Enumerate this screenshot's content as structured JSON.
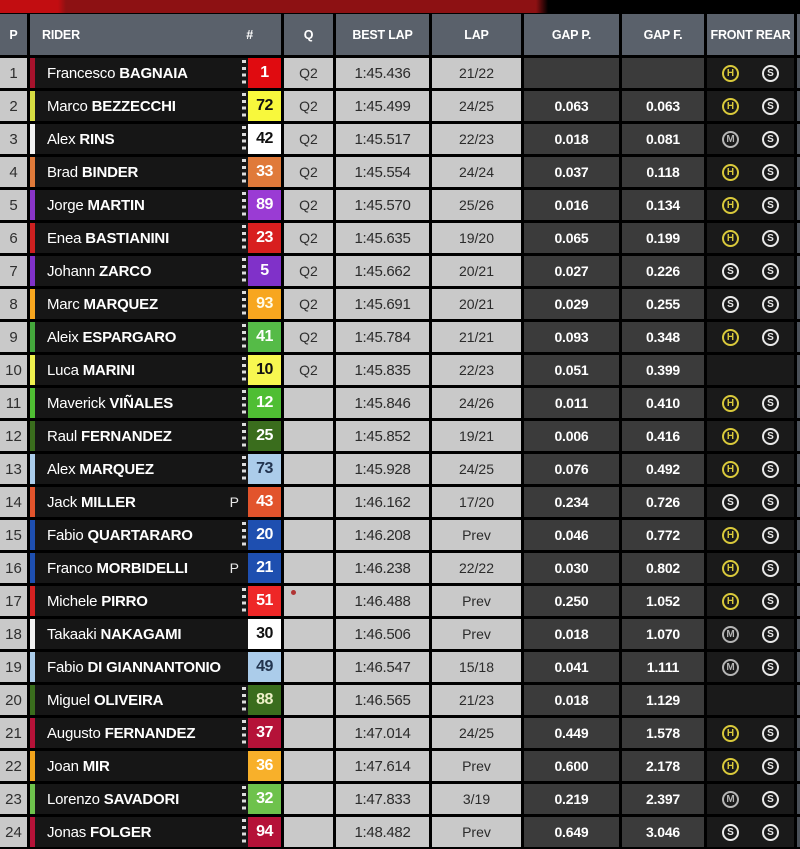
{
  "header": {
    "p": "P",
    "rider": "RIDER",
    "num": "#",
    "q": "Q",
    "best_lap": "BEST LAP",
    "lap": "LAP",
    "gap_p": "GAP P.",
    "gap_f": "GAP F.",
    "tires": "FRONT REAR"
  },
  "accent_colors": {
    "topbar_bright_red": "#c20d11",
    "topbar_dark_red": "#8d1113",
    "header_bg": "#5a616b",
    "light_cell_bg": "#c9c9c9",
    "gap_cell_bg": "#3b3b3b",
    "note_dot": "#b03434"
  },
  "tire_colors": {
    "H": "#d9c93b",
    "M": "#b5b5b5",
    "S": "#e9e9e9"
  },
  "rows": [
    {
      "pos": "1",
      "first": "Francesco",
      "last": "BAGNAIA",
      "pit_flag": "",
      "on_track": true,
      "note": false,
      "num": "1",
      "num_bg": "#e00b10",
      "num_fg": "#ffffff",
      "stripe": "#a6122c",
      "q": "Q2",
      "best_lap": "1:45.436",
      "lap": "21/22",
      "gap_p": "",
      "gap_f": "",
      "front": "H",
      "rear": "S"
    },
    {
      "pos": "2",
      "first": "Marco",
      "last": "BEZZECCHI",
      "pit_flag": "",
      "on_track": true,
      "note": false,
      "num": "72",
      "num_bg": "#f8f83c",
      "num_fg": "#111111",
      "stripe": "#d6dc42",
      "q": "Q2",
      "best_lap": "1:45.499",
      "lap": "24/25",
      "gap_p": "0.063",
      "gap_f": "0.063",
      "front": "H",
      "rear": "S"
    },
    {
      "pos": "3",
      "first": "Alex",
      "last": "RINS",
      "pit_flag": "",
      "on_track": true,
      "note": false,
      "num": "42",
      "num_bg": "#ffffff",
      "num_fg": "#111111",
      "stripe": "#f2f2f2",
      "q": "Q2",
      "best_lap": "1:45.517",
      "lap": "22/23",
      "gap_p": "0.018",
      "gap_f": "0.081",
      "front": "M",
      "rear": "S"
    },
    {
      "pos": "4",
      "first": "Brad",
      "last": "BINDER",
      "pit_flag": "",
      "on_track": true,
      "note": false,
      "num": "33",
      "num_bg": "#e07a3a",
      "num_fg": "#ffffff",
      "stripe": "#e07a3a",
      "q": "Q2",
      "best_lap": "1:45.554",
      "lap": "24/24",
      "gap_p": "0.037",
      "gap_f": "0.118",
      "front": "H",
      "rear": "S"
    },
    {
      "pos": "5",
      "first": "Jorge",
      "last": "MARTIN",
      "pit_flag": "",
      "on_track": true,
      "note": false,
      "num": "89",
      "num_bg": "#9a3bd4",
      "num_fg": "#ffffff",
      "stripe": "#8a35c8",
      "q": "Q2",
      "best_lap": "1:45.570",
      "lap": "25/26",
      "gap_p": "0.016",
      "gap_f": "0.134",
      "front": "H",
      "rear": "S"
    },
    {
      "pos": "6",
      "first": "Enea",
      "last": "BASTIANINI",
      "pit_flag": "",
      "on_track": true,
      "note": false,
      "num": "23",
      "num_bg": "#d81f1f",
      "num_fg": "#ffffff",
      "stripe": "#cc2020",
      "q": "Q2",
      "best_lap": "1:45.635",
      "lap": "19/20",
      "gap_p": "0.065",
      "gap_f": "0.199",
      "front": "H",
      "rear": "S"
    },
    {
      "pos": "7",
      "first": "Johann",
      "last": "ZARCO",
      "pit_flag": "",
      "on_track": true,
      "note": false,
      "num": "5",
      "num_bg": "#8031c9",
      "num_fg": "#ffffff",
      "stripe": "#8031c9",
      "q": "Q2",
      "best_lap": "1:45.662",
      "lap": "20/21",
      "gap_p": "0.027",
      "gap_f": "0.226",
      "front": "S",
      "rear": "S"
    },
    {
      "pos": "8",
      "first": "Marc",
      "last": "MARQUEZ",
      "pit_flag": "",
      "on_track": true,
      "note": false,
      "num": "93",
      "num_bg": "#f7a61f",
      "num_fg": "#fffbe8",
      "stripe": "#f7a61f",
      "q": "Q2",
      "best_lap": "1:45.691",
      "lap": "20/21",
      "gap_p": "0.029",
      "gap_f": "0.255",
      "front": "S",
      "rear": "S"
    },
    {
      "pos": "9",
      "first": "Aleix",
      "last": "ESPARGARO",
      "pit_flag": "",
      "on_track": true,
      "note": false,
      "num": "41",
      "num_bg": "#55bb47",
      "num_fg": "#ffffff",
      "stripe": "#44a83c",
      "q": "Q2",
      "best_lap": "1:45.784",
      "lap": "21/21",
      "gap_p": "0.093",
      "gap_f": "0.348",
      "front": "H",
      "rear": "S"
    },
    {
      "pos": "10",
      "first": "Luca",
      "last": "MARINI",
      "pit_flag": "",
      "on_track": true,
      "note": false,
      "num": "10",
      "num_bg": "#f7f750",
      "num_fg": "#111111",
      "stripe": "#eef04e",
      "q": "Q2",
      "best_lap": "1:45.835",
      "lap": "22/23",
      "gap_p": "0.051",
      "gap_f": "0.399",
      "front": "",
      "rear": ""
    },
    {
      "pos": "11",
      "first": "Maverick",
      "last": "VIÑALES",
      "pit_flag": "",
      "on_track": true,
      "note": false,
      "num": "12",
      "num_bg": "#4fbe33",
      "num_fg": "#ffffff",
      "stripe": "#4fbe33",
      "q": "",
      "best_lap": "1:45.846",
      "lap": "24/26",
      "gap_p": "0.011",
      "gap_f": "0.410",
      "front": "H",
      "rear": "S"
    },
    {
      "pos": "12",
      "first": "Raul",
      "last": "FERNANDEZ",
      "pit_flag": "",
      "on_track": true,
      "note": false,
      "num": "25",
      "num_bg": "#3a6d1d",
      "num_fg": "#ffffff",
      "stripe": "#3a6d1d",
      "q": "",
      "best_lap": "1:45.852",
      "lap": "19/21",
      "gap_p": "0.006",
      "gap_f": "0.416",
      "front": "H",
      "rear": "S"
    },
    {
      "pos": "13",
      "first": "Alex",
      "last": "MARQUEZ",
      "pit_flag": "",
      "on_track": true,
      "note": false,
      "num": "73",
      "num_bg": "#abccea",
      "num_fg": "#22344f",
      "stripe": "#abccea",
      "q": "",
      "best_lap": "1:45.928",
      "lap": "24/25",
      "gap_p": "0.076",
      "gap_f": "0.492",
      "front": "H",
      "rear": "S"
    },
    {
      "pos": "14",
      "first": "Jack",
      "last": "MILLER",
      "pit_flag": "P",
      "on_track": false,
      "note": false,
      "num": "43",
      "num_bg": "#e2542c",
      "num_fg": "#ffffff",
      "stripe": "#e2542c",
      "q": "",
      "best_lap": "1:46.162",
      "lap": "17/20",
      "gap_p": "0.234",
      "gap_f": "0.726",
      "front": "S",
      "rear": "S"
    },
    {
      "pos": "15",
      "first": "Fabio",
      "last": "QUARTARARO",
      "pit_flag": "",
      "on_track": true,
      "note": false,
      "num": "20",
      "num_bg": "#1e4fb0",
      "num_fg": "#ffffff",
      "stripe": "#1e4fb0",
      "q": "",
      "best_lap": "1:46.208",
      "lap": "Prev",
      "gap_p": "0.046",
      "gap_f": "0.772",
      "front": "H",
      "rear": "S"
    },
    {
      "pos": "16",
      "first": "Franco",
      "last": "MORBIDELLI",
      "pit_flag": "P",
      "on_track": false,
      "note": false,
      "num": "21",
      "num_bg": "#1e4fb0",
      "num_fg": "#ffffff",
      "stripe": "#1e4fb0",
      "q": "",
      "best_lap": "1:46.238",
      "lap": "22/22",
      "gap_p": "0.030",
      "gap_f": "0.802",
      "front": "H",
      "rear": "S"
    },
    {
      "pos": "17",
      "first": "Michele",
      "last": "PIRRO",
      "pit_flag": "",
      "on_track": true,
      "note": true,
      "num": "51",
      "num_bg": "#ee2727",
      "num_fg": "#ffffff",
      "stripe": "#d42121",
      "q": "",
      "best_lap": "1:46.488",
      "lap": "Prev",
      "gap_p": "0.250",
      "gap_f": "1.052",
      "front": "H",
      "rear": "S"
    },
    {
      "pos": "18",
      "first": "Takaaki",
      "last": "NAKAGAMI",
      "pit_flag": "",
      "on_track": false,
      "note": false,
      "num": "30",
      "num_bg": "#ffffff",
      "num_fg": "#111111",
      "stripe": "#f2f2f2",
      "q": "",
      "best_lap": "1:46.506",
      "lap": "Prev",
      "gap_p": "0.018",
      "gap_f": "1.070",
      "front": "M",
      "rear": "S"
    },
    {
      "pos": "19",
      "first": "Fabio",
      "last": "DI GIANNANTONIO",
      "pit_flag": "",
      "on_track": false,
      "note": false,
      "num": "49",
      "num_bg": "#abccea",
      "num_fg": "#22344f",
      "stripe": "#abccea",
      "q": "",
      "best_lap": "1:46.547",
      "lap": "15/18",
      "gap_p": "0.041",
      "gap_f": "1.111",
      "front": "M",
      "rear": "S"
    },
    {
      "pos": "20",
      "first": "Miguel",
      "last": "OLIVEIRA",
      "pit_flag": "",
      "on_track": true,
      "note": false,
      "num": "88",
      "num_bg": "#3a6d1d",
      "num_fg": "#eef2c8",
      "stripe": "#3a6d1d",
      "q": "",
      "best_lap": "1:46.565",
      "lap": "21/23",
      "gap_p": "0.018",
      "gap_f": "1.129",
      "front": "",
      "rear": ""
    },
    {
      "pos": "21",
      "first": "Augusto",
      "last": "FERNANDEZ",
      "pit_flag": "",
      "on_track": true,
      "note": false,
      "num": "37",
      "num_bg": "#b51238",
      "num_fg": "#ffffff",
      "stripe": "#b51238",
      "q": "",
      "best_lap": "1:47.014",
      "lap": "24/25",
      "gap_p": "0.449",
      "gap_f": "1.578",
      "front": "H",
      "rear": "S"
    },
    {
      "pos": "22",
      "first": "Joan",
      "last": "MIR",
      "pit_flag": "",
      "on_track": false,
      "note": false,
      "num": "36",
      "num_bg": "#f8b02a",
      "num_fg": "#ffffff",
      "stripe": "#f0a31c",
      "q": "",
      "best_lap": "1:47.614",
      "lap": "Prev",
      "gap_p": "0.600",
      "gap_f": "2.178",
      "front": "H",
      "rear": "S"
    },
    {
      "pos": "23",
      "first": "Lorenzo",
      "last": "SAVADORI",
      "pit_flag": "",
      "on_track": true,
      "note": false,
      "num": "32",
      "num_bg": "#6ec24c",
      "num_fg": "#ffffff",
      "stripe": "#6ec24c",
      "q": "",
      "best_lap": "1:47.833",
      "lap": "3/19",
      "gap_p": "0.219",
      "gap_f": "2.397",
      "front": "M",
      "rear": "S"
    },
    {
      "pos": "24",
      "first": "Jonas",
      "last": "FOLGER",
      "pit_flag": "",
      "on_track": true,
      "note": false,
      "num": "94",
      "num_bg": "#b51238",
      "num_fg": "#ffffff",
      "stripe": "#b51238",
      "q": "",
      "best_lap": "1:48.482",
      "lap": "Prev",
      "gap_p": "0.649",
      "gap_f": "3.046",
      "front": "S",
      "rear": "S"
    }
  ]
}
